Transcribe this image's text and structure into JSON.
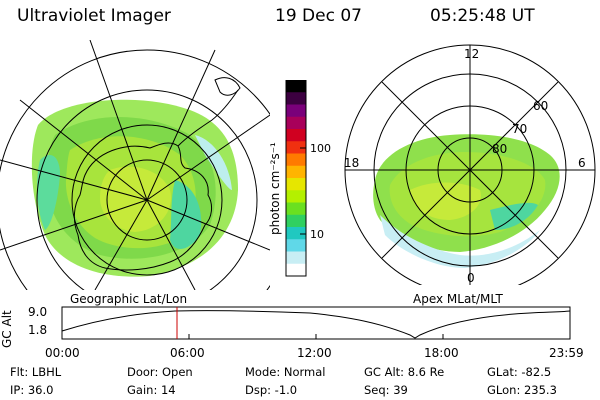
{
  "header": {
    "instrument": "Ultraviolet Imager",
    "date": "19 Dec 07",
    "time": "05:25:48 UT"
  },
  "colorbar": {
    "unit_label": "photon cm⁻²s⁻¹",
    "ticks": [
      "100",
      "10"
    ],
    "colors": [
      "#000000",
      "#3c0040",
      "#7a007a",
      "#a8005a",
      "#d00020",
      "#f03010",
      "#ff7a00",
      "#ffb400",
      "#e6e600",
      "#b4f000",
      "#6ae020",
      "#30d060",
      "#20c8c0",
      "#60d8e8",
      "#c8eef4",
      "#ffffff"
    ]
  },
  "left_map": {
    "label": "Geographic Lat/Lon"
  },
  "right_map": {
    "label": "Apex MLat/MLT",
    "mlt_labels": {
      "top": "12",
      "left": "18",
      "right": "6",
      "bottom": "0"
    },
    "lat_labels": [
      "60",
      "70",
      "80"
    ]
  },
  "altitude_plot": {
    "ylabel": "GC Alt",
    "yticks": [
      "9.0",
      "1.8"
    ],
    "xticks": [
      "00:00",
      "06:00",
      "12:00",
      "18:00",
      "23:59"
    ],
    "marker_time_hours": 5.43,
    "marker_color": "#cc0000"
  },
  "info": {
    "flt": "Flt: LBHL",
    "ip": "IP: 36.0",
    "door": "Door: Open",
    "gain": "Gain: 14",
    "mode": "Mode: Normal",
    "dsp": "Dsp:    -1.0",
    "gcalt": "GC Alt: 8.6 Re",
    "seq": "Seq: 39",
    "glat": "GLat: -82.5",
    "glon": "GLon: 235.3"
  }
}
